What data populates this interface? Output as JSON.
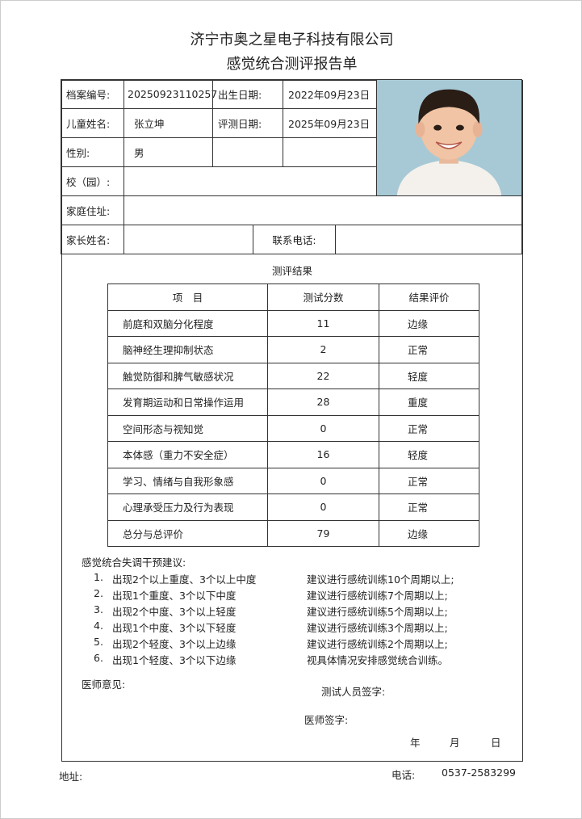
{
  "header": {
    "company": "济宁市奥之星电子科技有限公司",
    "report_title": "感觉统合测评报告单"
  },
  "info": {
    "file_no_label": "档案编号:",
    "file_no": "20250923110257",
    "birth_label": "出生日期:",
    "birth": "2022年09月23日",
    "name_label": "儿童姓名:",
    "name": "张立坤",
    "eval_date_label": "评测日期:",
    "eval_date": "2025年09月23日",
    "gender_label": "性别:",
    "gender": "男",
    "school_label": "校（园）:",
    "school": "",
    "address_label": "家庭住址:",
    "address": "",
    "parent_label": "家长姓名:",
    "parent": "",
    "phone_label": "联系电话:",
    "phone": ""
  },
  "results": {
    "title": "测评结果",
    "headers": [
      "项　目",
      "测试分数",
      "结果评价"
    ],
    "rows": [
      [
        "前庭和双脑分化程度",
        "11",
        "边缘"
      ],
      [
        "脑神经生理抑制状态",
        "2",
        "正常"
      ],
      [
        "触觉防御和脾气敏感状况",
        "22",
        "轻度"
      ],
      [
        "发育期运动和日常操作运用",
        "28",
        "重度"
      ],
      [
        "空间形态与视知觉",
        "0",
        "正常"
      ],
      [
        "本体感（重力不安全症）",
        "16",
        "轻度"
      ],
      [
        "学习、情绪与自我形象感",
        "0",
        "正常"
      ],
      [
        "心理承受压力及行为表现",
        "0",
        "正常"
      ],
      [
        "总分与总评价",
        "79",
        "边缘"
      ]
    ]
  },
  "suggestions": {
    "title": "感觉统合失调干预建议:",
    "items": [
      [
        "1.",
        "出现2个以上重度、3个以上中度",
        "建议进行感统训练10个周期以上;"
      ],
      [
        "2.",
        "出现1个重度、3个以下中度",
        "建议进行感统训练7个周期以上;"
      ],
      [
        "3.",
        "出现2个中度、3个以上轻度",
        "建议进行感统训练5个周期以上;"
      ],
      [
        "4.",
        "出现1个中度、3个以下轻度",
        "建议进行感统训练3个周期以上;"
      ],
      [
        "5.",
        "出现2个轻度、3个以上边缘",
        "建议进行感统训练2个周期以上;"
      ],
      [
        "6.",
        "出现1个轻度、3个以下边缘",
        "视具体情况安排感觉统合训练。"
      ]
    ]
  },
  "signoff": {
    "doctor_opinion": "医师意见:",
    "tester_sign": "测试人员签字:",
    "doctor_sign": "医师签字:",
    "year": "年",
    "month": "月",
    "day": "日"
  },
  "footer": {
    "address_label": "地址:",
    "phone_label": "电话:",
    "phone": "0537-2583299"
  }
}
